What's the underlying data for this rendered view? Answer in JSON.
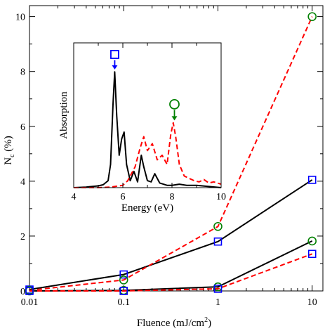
{
  "chart_data": [
    {
      "type": "line",
      "xscale": "log",
      "x_ticks": [
        "0.01",
        "0.1",
        "1",
        "10"
      ],
      "y_ticks": [
        "0",
        "2",
        "4",
        "6",
        "8",
        "10"
      ],
      "xlim": [
        0.01,
        13
      ],
      "ylim": [
        0,
        10.4
      ],
      "xlabel_main": "Fluence (mJ/cm",
      "xlabel_sup": "2",
      "xlabel_tail": ")",
      "ylabel_main": "N",
      "ylabel_sub": "c",
      "ylabel_tail": " (%)",
      "series": [
        {
          "style": "black solid, blue square markers",
          "x": [
            0.01,
            0.1,
            1.0,
            10.0
          ],
          "y": [
            0.05,
            0.6,
            1.8,
            4.05
          ]
        },
        {
          "style": "red dashed, green circle markers",
          "x": [
            0.01,
            0.1,
            1.0,
            10.0
          ],
          "y": [
            0.02,
            0.4,
            2.35,
            10.0
          ]
        },
        {
          "style": "black solid, green circle markers",
          "x": [
            0.01,
            0.1,
            1.0,
            10.0
          ],
          "y": [
            0.0,
            0.02,
            0.15,
            1.82
          ]
        },
        {
          "style": "red dashed, blue square markers",
          "x": [
            0.01,
            0.1,
            1.0,
            10.0
          ],
          "y": [
            0.0,
            0.0,
            0.08,
            1.35
          ]
        }
      ],
      "colors": {
        "black": "#000000",
        "red": "#ff0000",
        "blue": "#0000ff",
        "green": "#008000"
      }
    },
    {
      "type": "line",
      "xlabel": "Energy (eV)",
      "ylabel": "Absorption",
      "x_ticks": [
        "4",
        "6",
        "8",
        "10"
      ],
      "xlim": [
        4,
        10
      ],
      "ylim": [
        0,
        1.25
      ],
      "series": [
        {
          "style": "black solid",
          "x": [
            4.0,
            4.5,
            5.0,
            5.2,
            5.4,
            5.5,
            5.6,
            5.67,
            5.75,
            5.85,
            5.95,
            6.05,
            6.15,
            6.3,
            6.45,
            6.6,
            6.75,
            6.85,
            7.0,
            7.15,
            7.3,
            7.5,
            7.8,
            8.0,
            8.3,
            8.6,
            9.0,
            9.5,
            10.0
          ],
          "y": [
            0.0,
            0.005,
            0.015,
            0.025,
            0.06,
            0.2,
            0.72,
            1.0,
            0.62,
            0.28,
            0.42,
            0.48,
            0.2,
            0.06,
            0.14,
            0.05,
            0.28,
            0.18,
            0.06,
            0.05,
            0.12,
            0.04,
            0.02,
            0.02,
            0.03,
            0.02,
            0.02,
            0.01,
            0.0
          ]
        },
        {
          "style": "red dashed",
          "x": [
            4.0,
            5.0,
            5.5,
            6.0,
            6.2,
            6.5,
            6.7,
            6.85,
            7.0,
            7.2,
            7.4,
            7.6,
            7.8,
            7.95,
            8.05,
            8.15,
            8.3,
            8.5,
            8.7,
            8.9,
            9.1,
            9.3,
            9.5,
            9.7,
            10.0
          ],
          "y": [
            0.0,
            0.0,
            0.005,
            0.02,
            0.06,
            0.18,
            0.34,
            0.44,
            0.32,
            0.38,
            0.24,
            0.28,
            0.2,
            0.46,
            0.56,
            0.44,
            0.2,
            0.1,
            0.08,
            0.06,
            0.05,
            0.07,
            0.04,
            0.05,
            0.03
          ]
        }
      ],
      "markers": [
        {
          "shape": "square",
          "color": "#0000ff",
          "x": 5.67,
          "y": 1.15,
          "arrow_to_y": 1.02
        },
        {
          "shape": "circle",
          "color": "#008000",
          "x": 8.1,
          "y": 0.72,
          "arrow_to_y": 0.58
        }
      ]
    }
  ]
}
